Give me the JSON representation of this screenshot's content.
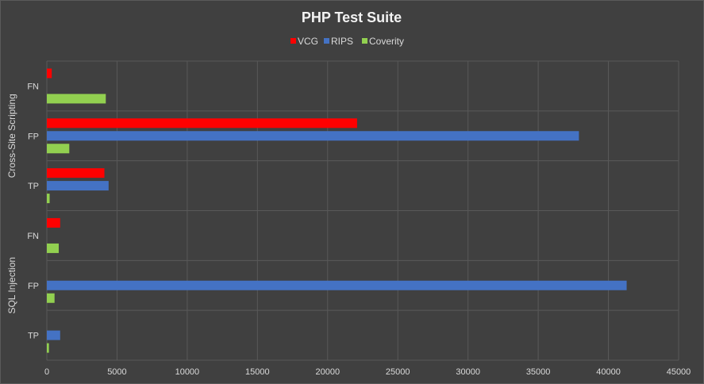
{
  "chart_data": {
    "type": "bar",
    "orientation": "horizontal",
    "title": "PHP Test Suite",
    "legend_position": "top",
    "xlim": [
      0,
      45000
    ],
    "x_ticks": [
      0,
      5000,
      10000,
      15000,
      20000,
      25000,
      30000,
      35000,
      40000,
      45000
    ],
    "grid": true,
    "groups": [
      {
        "label": "Cross-Site Scripting",
        "categories": [
          {
            "label": "FN",
            "values": [
              350,
              0,
              4200
            ]
          },
          {
            "label": "FP",
            "values": [
              22100,
              37900,
              1600
            ]
          },
          {
            "label": "TP",
            "values": [
              4100,
              4400,
              200
            ]
          }
        ]
      },
      {
        "label": "SQL Injection",
        "categories": [
          {
            "label": "FN",
            "values": [
              950,
              0,
              850
            ]
          },
          {
            "label": "FP",
            "values": [
              0,
              41300,
              550
            ]
          },
          {
            "label": "TP",
            "values": [
              0,
              950,
              150
            ]
          }
        ]
      }
    ],
    "series": [
      {
        "name": "VCG",
        "color": "#ff0000"
      },
      {
        "name": "RIPS",
        "color": "#4472c4"
      },
      {
        "name": "Coverity",
        "color": "#92d050"
      }
    ]
  }
}
